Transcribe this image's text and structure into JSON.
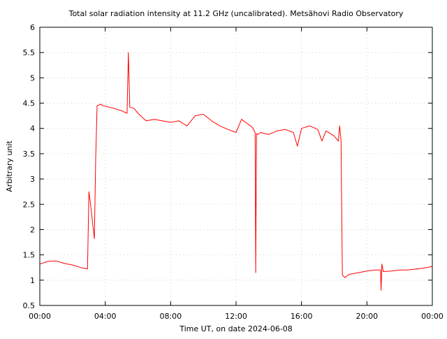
{
  "chart_data": {
    "type": "line",
    "title": "Total solar radiation intensity at 11.2 GHz (uncalibrated). Metsähovi Radio Observatory",
    "xlabel": "Time UT, on date 2024-06-08",
    "ylabel": "Arbitrary unit",
    "xlim": [
      "00:00",
      "24:00"
    ],
    "ylim": [
      0.5,
      6
    ],
    "x_tick_labels": [
      "00:00",
      "04:00",
      "08:00",
      "12:00",
      "16:00",
      "20:00",
      "00:00"
    ],
    "y_tick_labels": [
      "0.5",
      "1",
      "1.5",
      "2",
      "2.5",
      "3",
      "3.5",
      "4",
      "4.5",
      "5",
      "5.5",
      "6"
    ],
    "grid": true,
    "line_color": "#ff0000",
    "series": [
      {
        "x": [
          "00:00",
          "00:30",
          "01:00",
          "01:30",
          "02:00",
          "02:30",
          "02:55",
          "03:00",
          "03:05",
          "03:20",
          "03:25",
          "03:30",
          "03:45",
          "03:50",
          "04:00",
          "04:30",
          "05:00",
          "05:20",
          "05:25",
          "05:30",
          "05:45",
          "06:00",
          "06:30",
          "07:00",
          "07:30",
          "08:00",
          "08:30",
          "09:00",
          "09:30",
          "10:00",
          "10:30",
          "11:00",
          "11:30",
          "12:00",
          "12:20",
          "12:40",
          "13:00",
          "13:10",
          "13:12",
          "13:15",
          "13:20",
          "13:30",
          "14:00",
          "14:30",
          "15:00",
          "15:30",
          "15:45",
          "16:00",
          "16:30",
          "17:00",
          "17:15",
          "17:30",
          "18:00",
          "18:15",
          "18:20",
          "18:25",
          "18:30",
          "18:40",
          "18:50",
          "19:00",
          "19:30",
          "20:00",
          "20:30",
          "20:50",
          "20:52",
          "20:55",
          "21:00",
          "21:30",
          "22:00",
          "22:30",
          "23:00",
          "23:30",
          "23:59"
        ],
        "y": [
          1.32,
          1.37,
          1.38,
          1.33,
          1.3,
          1.25,
          1.22,
          2.75,
          2.55,
          1.82,
          3.4,
          4.45,
          4.48,
          4.45,
          4.44,
          4.4,
          4.35,
          4.3,
          5.5,
          4.42,
          4.4,
          4.3,
          4.15,
          4.18,
          4.15,
          4.12,
          4.15,
          4.05,
          4.25,
          4.28,
          4.15,
          4.05,
          3.98,
          3.92,
          4.18,
          4.1,
          4.02,
          3.92,
          1.15,
          3.9,
          3.88,
          3.92,
          3.88,
          3.95,
          3.98,
          3.92,
          3.65,
          4.0,
          4.05,
          3.98,
          3.75,
          3.95,
          3.85,
          3.75,
          4.05,
          3.75,
          1.1,
          1.05,
          1.1,
          1.12,
          1.15,
          1.18,
          1.2,
          1.2,
          0.8,
          1.32,
          1.17,
          1.18,
          1.2,
          1.2,
          1.22,
          1.24,
          1.27
        ]
      }
    ]
  }
}
